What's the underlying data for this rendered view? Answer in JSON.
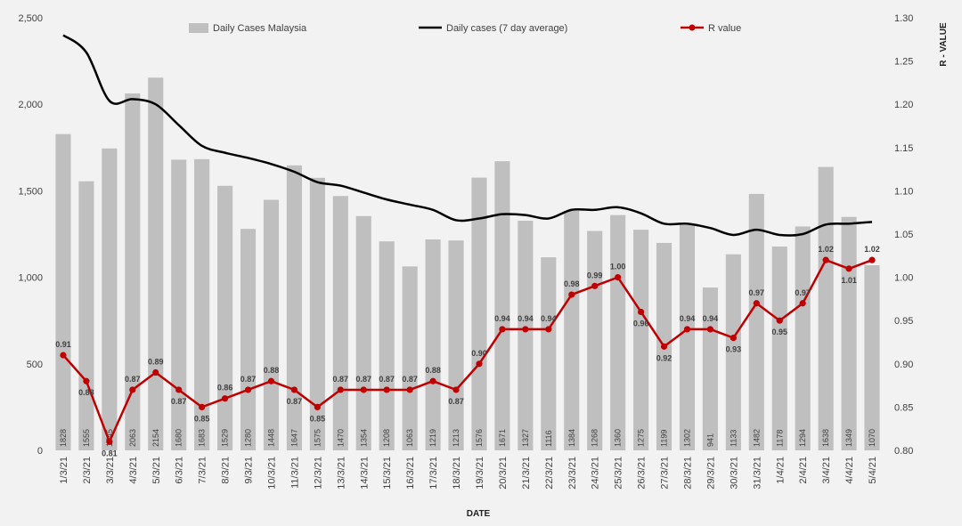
{
  "chart_data": {
    "type": "bar",
    "title": "",
    "xlabel": "DATE",
    "ylabel": "",
    "y2label": "R - VALUE",
    "ylim": [
      0,
      2500
    ],
    "y2lim": [
      0.8,
      1.3
    ],
    "yticks": [
      "0",
      "500",
      "1,000",
      "1,500",
      "2,000",
      "2,500"
    ],
    "y2ticks": [
      "0.80",
      "0.85",
      "0.90",
      "0.95",
      "1.00",
      "1.05",
      "1.10",
      "1.15",
      "1.20",
      "1.25",
      "1.30"
    ],
    "grid": false,
    "legend": "top",
    "categories": [
      "1/3/21",
      "2/3/21",
      "3/3/21",
      "4/3/21",
      "5/3/21",
      "6/3/21",
      "7/3/21",
      "8/3/21",
      "9/3/21",
      "10/3/21",
      "11/3/21",
      "12/3/21",
      "13/3/21",
      "14/3/21",
      "15/3/21",
      "16/3/21",
      "17/3/21",
      "18/3/21",
      "19/3/21",
      "20/3/21",
      "21/3/21",
      "22/3/21",
      "23/3/21",
      "24/3/21",
      "25/3/21",
      "26/3/21",
      "27/3/21",
      "28/3/21",
      "29/3/21",
      "30/3/21",
      "31/3/21",
      "1/4/21",
      "2/4/21",
      "3/4/21",
      "4/4/21",
      "5/4/21"
    ],
    "series": [
      {
        "name": "Daily Cases Malaysia",
        "type": "bar",
        "axis": "left",
        "color": "#bfbfbf",
        "values": [
          1828,
          1555,
          1745,
          2063,
          2154,
          1680,
          1683,
          1529,
          1280,
          1448,
          1647,
          1575,
          1470,
          1354,
          1208,
          1063,
          1219,
          1213,
          1576,
          1671,
          1327,
          1116,
          1384,
          1268,
          1360,
          1275,
          1199,
          1302,
          941,
          1133,
          1482,
          1178,
          1294,
          1638,
          1349,
          1070
        ],
        "labels": [
          "1828",
          "1555",
          "1745",
          "2063",
          "2154",
          "1680",
          "1683",
          "1529",
          "1280",
          "1448",
          "1647",
          "1575",
          "1470",
          "1354",
          "1208",
          "1063",
          "1219",
          "1213",
          "1576",
          "1671",
          "1327",
          "1116",
          "1384",
          "1268",
          "1360",
          "1275",
          "1199",
          "1302",
          "941",
          "1133",
          "1482",
          "1178",
          "1294",
          "1638",
          "1349",
          "1070"
        ]
      },
      {
        "name": "Daily cases (7 day average)",
        "type": "line",
        "axis": "left",
        "color": "#000000",
        "values": [
          2400,
          2300,
          2020,
          2030,
          2000,
          1880,
          1760,
          1720,
          1690,
          1655,
          1610,
          1550,
          1530,
          1490,
          1450,
          1420,
          1390,
          1330,
          1340,
          1365,
          1360,
          1340,
          1390,
          1390,
          1405,
          1370,
          1310,
          1310,
          1285,
          1245,
          1275,
          1245,
          1250,
          1305,
          1310,
          1320
        ]
      },
      {
        "name": "R value",
        "type": "line",
        "axis": "right",
        "color": "#c00000",
        "values": [
          0.91,
          0.88,
          0.81,
          0.87,
          0.89,
          0.87,
          0.85,
          0.86,
          0.87,
          0.88,
          0.87,
          0.85,
          0.87,
          0.87,
          0.87,
          0.87,
          0.88,
          0.87,
          0.9,
          0.94,
          0.94,
          0.94,
          0.98,
          0.99,
          1.0,
          0.96,
          0.92,
          0.94,
          0.94,
          0.93,
          0.97,
          0.95,
          0.97,
          1.02,
          1.01,
          1.02
        ],
        "labels": [
          "0.91",
          "0.88",
          "0.81",
          "0.87",
          "0.89",
          "0.87",
          "0.85",
          "0.86",
          "0.87",
          "0.88",
          "0.87",
          "0.85",
          "0.87",
          "0.87",
          "0.87",
          "0.87",
          "0.88",
          "0.87",
          "0.90",
          "0.94",
          "0.94",
          "0.94",
          "0.98",
          "0.99",
          "1.00",
          "0.96",
          "0.92",
          "0.94",
          "0.94",
          "0.93",
          "0.97",
          "0.95",
          "0.97",
          "1.02",
          "1.01",
          "1.02"
        ]
      }
    ]
  }
}
